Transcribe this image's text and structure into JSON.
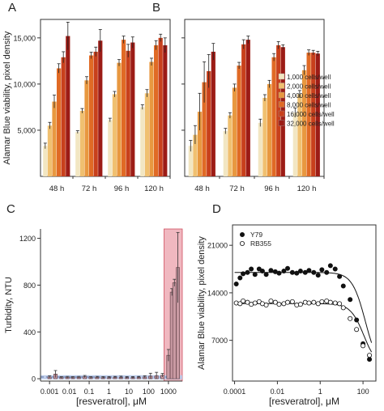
{
  "colors": {
    "bar_series": [
      "#f2e6c2",
      "#f0c070",
      "#e89840",
      "#e06a25",
      "#c8401c",
      "#9c1c16"
    ],
    "shade_red": "#f0b8c0",
    "shade_red_edge": "#d05060",
    "shade_blue": "#b8c8e8"
  },
  "chart_data": [
    {
      "panel": "A",
      "type": "bar",
      "ylabel": "Alamar Blue viability, pixel density",
      "xlabel": "",
      "ylim": [
        0,
        17000
      ],
      "yticks": [
        5000,
        10000,
        15000
      ],
      "ytick_labels": [
        "5,000",
        "10,000",
        "15,000"
      ],
      "categories": [
        "48 h",
        "72 h",
        "96 h",
        "120 h"
      ],
      "series": [
        {
          "name": "1,000 cells/well",
          "values": [
            3300,
            4800,
            6100,
            7500
          ],
          "errors": [
            300,
            150,
            200,
            250
          ]
        },
        {
          "name": "2,000 cells/well",
          "values": [
            5500,
            7100,
            8900,
            9000
          ],
          "errors": [
            350,
            250,
            300,
            400
          ]
        },
        {
          "name": "4,000 cells/well",
          "values": [
            8100,
            10400,
            12300,
            12400
          ],
          "errors": [
            700,
            400,
            350,
            400
          ]
        },
        {
          "name": "8,000 cells/well",
          "values": [
            11700,
            13100,
            14800,
            14200
          ],
          "errors": [
            500,
            350,
            400,
            500
          ]
        },
        {
          "name": "16,000 cells/well",
          "values": [
            12900,
            13500,
            13600,
            15000
          ],
          "errors": [
            600,
            500,
            700,
            400
          ]
        },
        {
          "name": "32,000 cells/well",
          "values": [
            15200,
            14700,
            14500,
            14200
          ],
          "errors": [
            1500,
            1200,
            600,
            800
          ]
        }
      ]
    },
    {
      "panel": "B",
      "type": "bar",
      "ylim": [
        0,
        17000
      ],
      "categories": [
        "48 h",
        "72 h",
        "96 h",
        "120 h"
      ],
      "series": [
        {
          "values": [
            3300,
            4900,
            5800,
            6900
          ],
          "errors": [
            600,
            300,
            400,
            500
          ]
        },
        {
          "values": [
            4500,
            6600,
            8500,
            8900
          ],
          "errors": [
            1000,
            300,
            350,
            400
          ]
        },
        {
          "values": [
            7000,
            9600,
            10000,
            11500
          ],
          "errors": [
            2000,
            400,
            400,
            500
          ]
        },
        {
          "values": [
            10200,
            12000,
            12900,
            13400
          ],
          "errors": [
            2200,
            350,
            400,
            300
          ]
        },
        {
          "values": [
            11400,
            14300,
            14200,
            13400
          ],
          "errors": [
            1800,
            500,
            400,
            250
          ]
        },
        {
          "values": [
            13500,
            14800,
            14000,
            13300
          ],
          "errors": [
            900,
            400,
            250,
            250
          ]
        }
      ],
      "legend": [
        "1,000 cells/well",
        "2,000 cells/well",
        "4,000 cells/well",
        "8,000 cells/well",
        "16,000 cells/well",
        "32,000 cells/well"
      ],
      "legend_position": "right"
    },
    {
      "panel": "C",
      "type": "bar",
      "xlabel": "[resveratrol], μM",
      "ylabel": "Turbidity, NTU",
      "xscale": "log",
      "xlim": [
        0.00035,
        5000
      ],
      "ylim": [
        -20,
        1280
      ],
      "xticks": [
        0.001,
        0.01,
        0.1,
        1,
        10,
        100,
        1000
      ],
      "xtick_labels": [
        "0.001",
        "0.01",
        "0.1",
        "1",
        "10",
        "100",
        "1000"
      ],
      "yticks": [
        0,
        400,
        800,
        1200
      ],
      "ytick_labels": [
        "0",
        "400",
        "800",
        "1200"
      ],
      "x": [
        0.001,
        0.002,
        0.004,
        0.008,
        0.015,
        0.03,
        0.06,
        0.12,
        0.25,
        0.5,
        1,
        2,
        4,
        8,
        16,
        32,
        64,
        125,
        250,
        500,
        1000,
        1500,
        2000,
        3000
      ],
      "values": [
        15,
        40,
        10,
        12,
        10,
        12,
        18,
        10,
        12,
        10,
        10,
        12,
        12,
        10,
        10,
        12,
        15,
        22,
        25,
        30,
        200,
        740,
        820,
        950
      ],
      "errors": [
        10,
        30,
        8,
        8,
        8,
        8,
        10,
        8,
        8,
        8,
        8,
        8,
        10,
        8,
        8,
        8,
        10,
        25,
        30,
        15,
        50,
        30,
        30,
        300
      ],
      "highlight_range": [
        600,
        5000
      ],
      "baseline_band": [
        -5,
        30
      ]
    },
    {
      "panel": "D",
      "type": "scatter",
      "xlabel": "[resveratrol], μM",
      "ylabel": "Alamar Blue viability, pixel density",
      "xscale": "log",
      "xlim": [
        8e-05,
        400
      ],
      "ylim": [
        1000,
        24000
      ],
      "xticks": [
        0.0001,
        0.01,
        1,
        100
      ],
      "xtick_labels": [
        "0.0001",
        "0.01",
        "1",
        "100"
      ],
      "yticks": [
        7000,
        14000,
        21000
      ],
      "ytick_labels": [
        "7000",
        "14000",
        "21000"
      ],
      "series": [
        {
          "name": "Y79",
          "marker": "filled",
          "x": [
            0.00012,
            0.00018,
            0.00025,
            0.0004,
            0.0006,
            0.0009,
            0.0014,
            0.002,
            0.003,
            0.005,
            0.008,
            0.012,
            0.02,
            0.03,
            0.05,
            0.08,
            0.12,
            0.2,
            0.3,
            0.5,
            0.8,
            1.2,
            2,
            3,
            5,
            8,
            12,
            25,
            50,
            100,
            200
          ],
          "y": [
            15300,
            16200,
            16800,
            17000,
            17500,
            16700,
            17500,
            17200,
            16700,
            17300,
            17100,
            16900,
            17200,
            17600,
            17000,
            16900,
            17200,
            17000,
            17300,
            17000,
            16600,
            17400,
            17000,
            18000,
            17500,
            16400,
            15000,
            13000,
            10000,
            6500,
            4200
          ]
        },
        {
          "name": "RB355",
          "marker": "open",
          "x": [
            0.00012,
            0.00018,
            0.00025,
            0.0004,
            0.0006,
            0.0009,
            0.0014,
            0.002,
            0.003,
            0.005,
            0.008,
            0.012,
            0.02,
            0.03,
            0.05,
            0.08,
            0.12,
            0.2,
            0.3,
            0.5,
            0.8,
            1.2,
            2,
            3,
            5,
            8,
            12,
            25,
            50,
            100,
            200
          ],
          "y": [
            12500,
            12400,
            12800,
            12600,
            12300,
            12500,
            12700,
            12400,
            12200,
            12800,
            12600,
            12300,
            12400,
            12600,
            12700,
            12200,
            12300,
            12600,
            12500,
            12600,
            12400,
            12700,
            12800,
            12600,
            12500,
            12400,
            11800,
            10200,
            8600,
            6200,
            4800
          ]
        }
      ],
      "fits": [
        {
          "series": "Y79",
          "top": 17000,
          "bottom": 2500,
          "ic50": 130,
          "hill": 1.4
        },
        {
          "series": "RB355",
          "top": 12400,
          "bottom": 3000,
          "ic50": 110,
          "hill": 1.4
        }
      ],
      "legend_position": "top-left"
    }
  ]
}
